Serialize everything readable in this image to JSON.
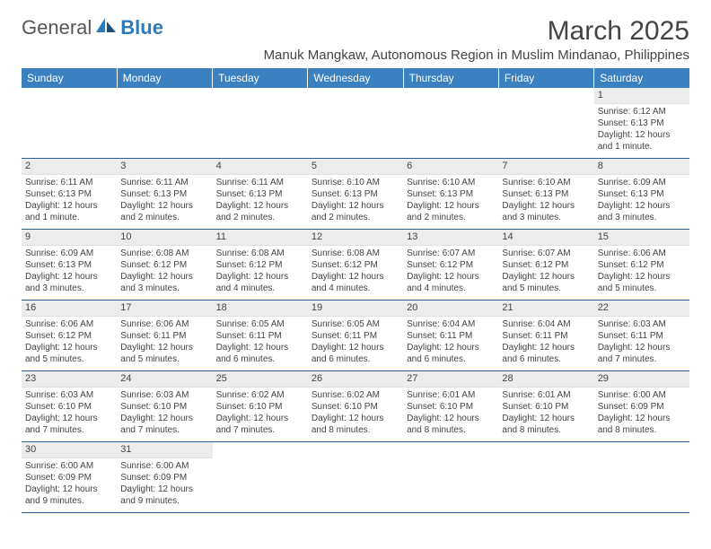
{
  "logo": {
    "text1": "General",
    "text2": "Blue"
  },
  "title": "March 2025",
  "subtitle": "Manuk Mangkaw, Autonomous Region in Muslim Mindanao, Philippines",
  "header_bg": "#3b80bf",
  "header_fg": "#ffffff",
  "daynum_bg": "#ececec",
  "rule_color": "#2f5e94",
  "weekdays": [
    "Sunday",
    "Monday",
    "Tuesday",
    "Wednesday",
    "Thursday",
    "Friday",
    "Saturday"
  ],
  "weeks": [
    [
      null,
      null,
      null,
      null,
      null,
      null,
      {
        "n": "1",
        "sr": "6:12 AM",
        "ss": "6:13 PM",
        "dl": "12 hours and 1 minute."
      }
    ],
    [
      {
        "n": "2",
        "sr": "6:11 AM",
        "ss": "6:13 PM",
        "dl": "12 hours and 1 minute."
      },
      {
        "n": "3",
        "sr": "6:11 AM",
        "ss": "6:13 PM",
        "dl": "12 hours and 2 minutes."
      },
      {
        "n": "4",
        "sr": "6:11 AM",
        "ss": "6:13 PM",
        "dl": "12 hours and 2 minutes."
      },
      {
        "n": "5",
        "sr": "6:10 AM",
        "ss": "6:13 PM",
        "dl": "12 hours and 2 minutes."
      },
      {
        "n": "6",
        "sr": "6:10 AM",
        "ss": "6:13 PM",
        "dl": "12 hours and 2 minutes."
      },
      {
        "n": "7",
        "sr": "6:10 AM",
        "ss": "6:13 PM",
        "dl": "12 hours and 3 minutes."
      },
      {
        "n": "8",
        "sr": "6:09 AM",
        "ss": "6:13 PM",
        "dl": "12 hours and 3 minutes."
      }
    ],
    [
      {
        "n": "9",
        "sr": "6:09 AM",
        "ss": "6:13 PM",
        "dl": "12 hours and 3 minutes."
      },
      {
        "n": "10",
        "sr": "6:08 AM",
        "ss": "6:12 PM",
        "dl": "12 hours and 3 minutes."
      },
      {
        "n": "11",
        "sr": "6:08 AM",
        "ss": "6:12 PM",
        "dl": "12 hours and 4 minutes."
      },
      {
        "n": "12",
        "sr": "6:08 AM",
        "ss": "6:12 PM",
        "dl": "12 hours and 4 minutes."
      },
      {
        "n": "13",
        "sr": "6:07 AM",
        "ss": "6:12 PM",
        "dl": "12 hours and 4 minutes."
      },
      {
        "n": "14",
        "sr": "6:07 AM",
        "ss": "6:12 PM",
        "dl": "12 hours and 5 minutes."
      },
      {
        "n": "15",
        "sr": "6:06 AM",
        "ss": "6:12 PM",
        "dl": "12 hours and 5 minutes."
      }
    ],
    [
      {
        "n": "16",
        "sr": "6:06 AM",
        "ss": "6:12 PM",
        "dl": "12 hours and 5 minutes."
      },
      {
        "n": "17",
        "sr": "6:06 AM",
        "ss": "6:11 PM",
        "dl": "12 hours and 5 minutes."
      },
      {
        "n": "18",
        "sr": "6:05 AM",
        "ss": "6:11 PM",
        "dl": "12 hours and 6 minutes."
      },
      {
        "n": "19",
        "sr": "6:05 AM",
        "ss": "6:11 PM",
        "dl": "12 hours and 6 minutes."
      },
      {
        "n": "20",
        "sr": "6:04 AM",
        "ss": "6:11 PM",
        "dl": "12 hours and 6 minutes."
      },
      {
        "n": "21",
        "sr": "6:04 AM",
        "ss": "6:11 PM",
        "dl": "12 hours and 6 minutes."
      },
      {
        "n": "22",
        "sr": "6:03 AM",
        "ss": "6:11 PM",
        "dl": "12 hours and 7 minutes."
      }
    ],
    [
      {
        "n": "23",
        "sr": "6:03 AM",
        "ss": "6:10 PM",
        "dl": "12 hours and 7 minutes."
      },
      {
        "n": "24",
        "sr": "6:03 AM",
        "ss": "6:10 PM",
        "dl": "12 hours and 7 minutes."
      },
      {
        "n": "25",
        "sr": "6:02 AM",
        "ss": "6:10 PM",
        "dl": "12 hours and 7 minutes."
      },
      {
        "n": "26",
        "sr": "6:02 AM",
        "ss": "6:10 PM",
        "dl": "12 hours and 8 minutes."
      },
      {
        "n": "27",
        "sr": "6:01 AM",
        "ss": "6:10 PM",
        "dl": "12 hours and 8 minutes."
      },
      {
        "n": "28",
        "sr": "6:01 AM",
        "ss": "6:10 PM",
        "dl": "12 hours and 8 minutes."
      },
      {
        "n": "29",
        "sr": "6:00 AM",
        "ss": "6:09 PM",
        "dl": "12 hours and 8 minutes."
      }
    ],
    [
      {
        "n": "30",
        "sr": "6:00 AM",
        "ss": "6:09 PM",
        "dl": "12 hours and 9 minutes."
      },
      {
        "n": "31",
        "sr": "6:00 AM",
        "ss": "6:09 PM",
        "dl": "12 hours and 9 minutes."
      },
      null,
      null,
      null,
      null,
      null
    ]
  ],
  "labels": {
    "sunrise": "Sunrise:",
    "sunset": "Sunset:",
    "daylight": "Daylight:"
  }
}
